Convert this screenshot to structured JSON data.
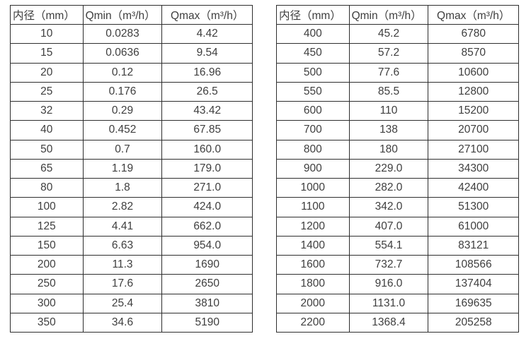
{
  "page": {
    "background_color": "#ffffff",
    "text_color": "#3e3e3e",
    "border_color": "#2e2e2e"
  },
  "chart_data": [
    {
      "type": "table",
      "name": "flow-rate-table-small-diameters",
      "headers": [
        "内径（mm）",
        "Qmin（m³/h）",
        "Qmax（m³/h）"
      ],
      "rows": [
        [
          "10",
          "0.0283",
          "4.42"
        ],
        [
          "15",
          "0.0636",
          "9.54"
        ],
        [
          "20",
          "0.12",
          "16.96"
        ],
        [
          "25",
          "0.176",
          "26.5"
        ],
        [
          "32",
          "0.29",
          "43.42"
        ],
        [
          "40",
          "0.452",
          "67.85"
        ],
        [
          "50",
          "0.7",
          "160.0"
        ],
        [
          "65",
          "1.19",
          "179.0"
        ],
        [
          "80",
          "1.8",
          "271.0"
        ],
        [
          "100",
          "2.82",
          "424.0"
        ],
        [
          "125",
          "4.41",
          "662.0"
        ],
        [
          "150",
          "6.63",
          "954.0"
        ],
        [
          "200",
          "11.3",
          "1690"
        ],
        [
          "250",
          "17.6",
          "2650"
        ],
        [
          "300",
          "25.4",
          "3810"
        ],
        [
          "350",
          "34.6",
          "5190"
        ]
      ]
    },
    {
      "type": "table",
      "name": "flow-rate-table-large-diameters",
      "headers": [
        "内径（mm）",
        "Qmin（m³/h）",
        "Qmax（m³/h）"
      ],
      "rows": [
        [
          "400",
          "45.2",
          "6780"
        ],
        [
          "450",
          "57.2",
          "8570"
        ],
        [
          "500",
          "77.6",
          "10600"
        ],
        [
          "550",
          "85.5",
          "12800"
        ],
        [
          "600",
          "110",
          "15200"
        ],
        [
          "700",
          "138",
          "20700"
        ],
        [
          "800",
          "180",
          "27100"
        ],
        [
          "900",
          "229.0",
          "34300"
        ],
        [
          "1000",
          "282.0",
          "42400"
        ],
        [
          "1100",
          "342.0",
          "51300"
        ],
        [
          "1200",
          "407.0",
          "61000"
        ],
        [
          "1400",
          "554.1",
          "83121"
        ],
        [
          "1600",
          "732.7",
          "108566"
        ],
        [
          "1800",
          "916.0",
          "137404"
        ],
        [
          "2000",
          "1131.0",
          "169635"
        ],
        [
          "2200",
          "1368.4",
          "205258"
        ]
      ]
    }
  ]
}
